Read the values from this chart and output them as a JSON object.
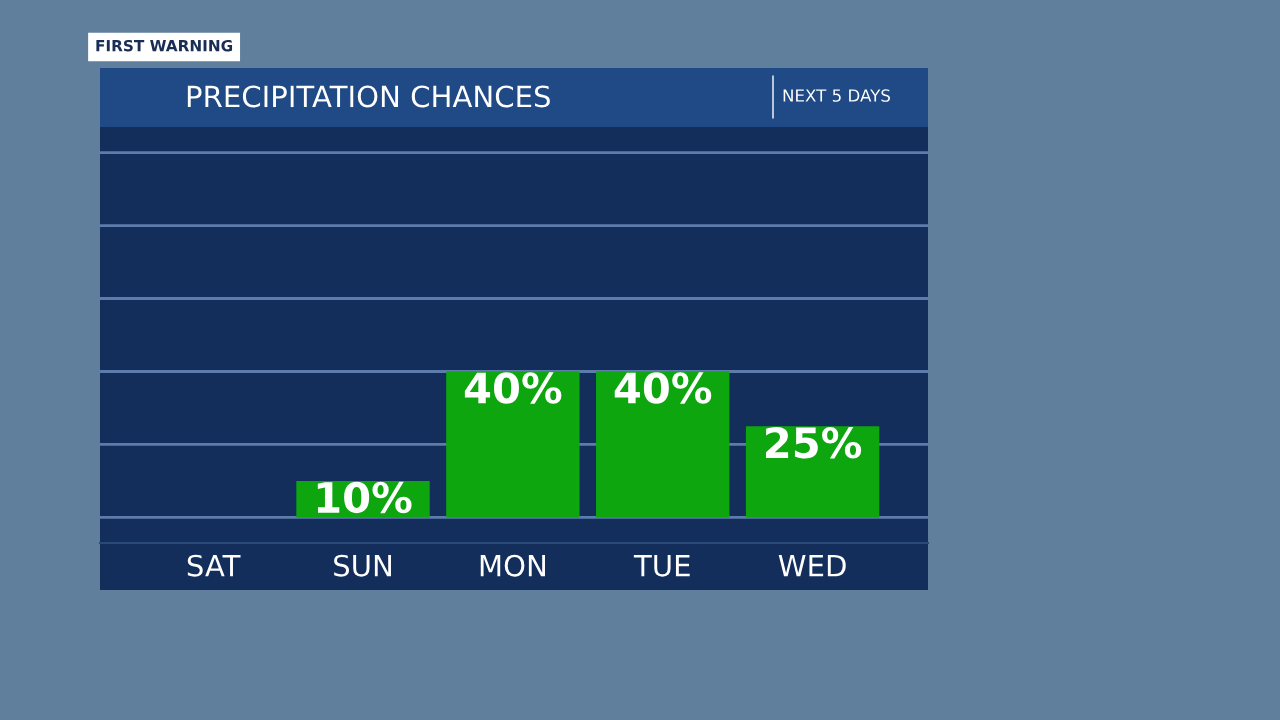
{
  "chart_data": {
    "type": "bar",
    "title": "PRECIPITATION CHANCES",
    "subtitle": "NEXT 5 DAYS",
    "annotations": [
      "FIRST WARNING"
    ],
    "categories": [
      "SAT",
      "SUN",
      "MON",
      "TUE",
      "WED"
    ],
    "values": [
      0,
      10,
      40,
      40,
      25
    ],
    "value_labels": [
      null,
      "10%",
      "40%",
      "40%",
      "25%"
    ],
    "color": "#0da60f",
    "ylim": [
      -7,
      107
    ],
    "yticks": [
      {
        "value": 0,
        "label": null
      },
      {
        "value": 20,
        "label": null
      },
      {
        "value": 40,
        "label": null
      },
      {
        "value": 60,
        "label": null
      },
      {
        "value": 80,
        "label": null
      },
      {
        "value": 100,
        "label": null
      }
    ],
    "tick_labels": "x",
    "grid": "y"
  }
}
